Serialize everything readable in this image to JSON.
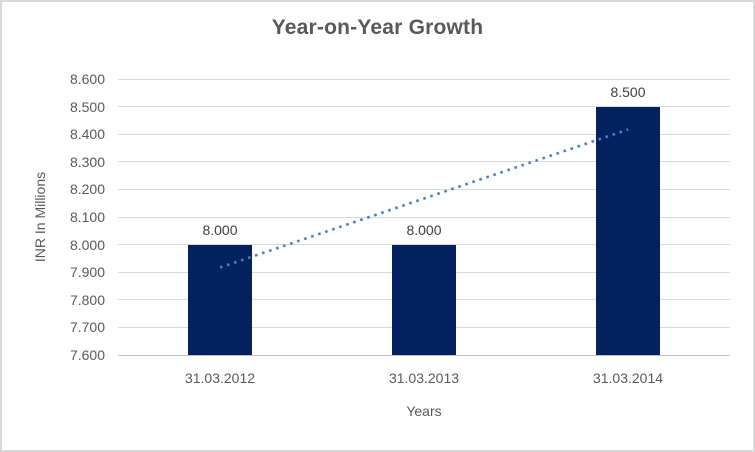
{
  "chart_data": {
    "type": "bar",
    "title": "Year-on-Year Growth",
    "xlabel": "Years",
    "ylabel": "INR In Millions",
    "categories": [
      "31.03.2012",
      "31.03.2013",
      "31.03.2014"
    ],
    "values": [
      8.0,
      8.0,
      8.5
    ],
    "data_labels": [
      "8.000",
      "8.000",
      "8.500"
    ],
    "ylim": [
      7.6,
      8.6
    ],
    "ytick_labels": [
      "8.600",
      "8.500",
      "8.400",
      "8.300",
      "8.200",
      "8.100",
      "8.000",
      "7.900",
      "7.800",
      "7.700",
      "7.600"
    ],
    "grid": true,
    "legend": false,
    "trendline": {
      "type": "linear",
      "style": "dotted",
      "start_value": 7.917,
      "end_value": 8.417
    },
    "colors": {
      "bar": "#03215f",
      "trendline": "#4a7fc1",
      "gridline": "#d9d9d9",
      "axis_line": "#bfbfbf",
      "text": "#595959",
      "data_label": "#404040",
      "border": "#d9d9d9",
      "background": "#ffffff"
    }
  }
}
